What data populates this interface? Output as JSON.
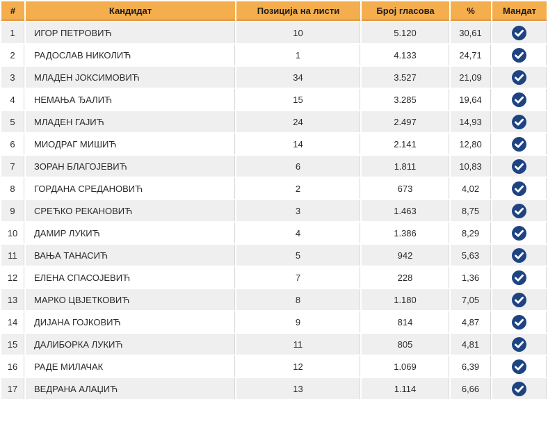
{
  "table": {
    "columns": [
      {
        "key": "index",
        "label": "#"
      },
      {
        "key": "candidate",
        "label": "Кандидат"
      },
      {
        "key": "position",
        "label": "Позиција на листи"
      },
      {
        "key": "votes",
        "label": "Број гласова"
      },
      {
        "key": "percent",
        "label": "%"
      },
      {
        "key": "mandate",
        "label": "Мандат"
      }
    ],
    "mandate_icon": "check-circle-icon",
    "rows": [
      {
        "index": "1",
        "candidate": "ИГОР ПЕТРОВИЋ",
        "position": "10",
        "votes": "5.120",
        "percent": "30,61",
        "mandate": true
      },
      {
        "index": "2",
        "candidate": "РАДОСЛАВ НИКОЛИЋ",
        "position": "1",
        "votes": "4.133",
        "percent": "24,71",
        "mandate": true
      },
      {
        "index": "3",
        "candidate": "МЛАДЕН ЈОКСИМОВИЋ",
        "position": "34",
        "votes": "3.527",
        "percent": "21,09",
        "mandate": true
      },
      {
        "index": "4",
        "candidate": "НЕМАЊА ЂАЛИЋ",
        "position": "15",
        "votes": "3.285",
        "percent": "19,64",
        "mandate": true
      },
      {
        "index": "5",
        "candidate": "МЛАДЕН ГАЈИЋ",
        "position": "24",
        "votes": "2.497",
        "percent": "14,93",
        "mandate": true
      },
      {
        "index": "6",
        "candidate": "МИОДРАГ МИШИЋ",
        "position": "14",
        "votes": "2.141",
        "percent": "12,80",
        "mandate": true
      },
      {
        "index": "7",
        "candidate": "ЗОРАН БЛАГОЈЕВИЋ",
        "position": "6",
        "votes": "1.811",
        "percent": "10,83",
        "mandate": true
      },
      {
        "index": "8",
        "candidate": "ГОРДАНА СРЕДАНОВИЋ",
        "position": "2",
        "votes": "673",
        "percent": "4,02",
        "mandate": true
      },
      {
        "index": "9",
        "candidate": "СРЕЋКО РЕКАНОВИЋ",
        "position": "3",
        "votes": "1.463",
        "percent": "8,75",
        "mandate": true
      },
      {
        "index": "10",
        "candidate": "ДАМИР ЛУКИЋ",
        "position": "4",
        "votes": "1.386",
        "percent": "8,29",
        "mandate": true
      },
      {
        "index": "11",
        "candidate": "ВАЊА ТАНАСИЋ",
        "position": "5",
        "votes": "942",
        "percent": "5,63",
        "mandate": true
      },
      {
        "index": "12",
        "candidate": "ЕЛЕНА СПАСОЈЕВИЋ",
        "position": "7",
        "votes": "228",
        "percent": "1,36",
        "mandate": true
      },
      {
        "index": "13",
        "candidate": "МАРКО ЦВЈЕТКОВИЋ",
        "position": "8",
        "votes": "1.180",
        "percent": "7,05",
        "mandate": true
      },
      {
        "index": "14",
        "candidate": "ДИЈАНА ГОЈКОВИЋ",
        "position": "9",
        "votes": "814",
        "percent": "4,87",
        "mandate": true
      },
      {
        "index": "15",
        "candidate": "ДАЛИБОРКА ЛУКИЋ",
        "position": "11",
        "votes": "805",
        "percent": "4,81",
        "mandate": true
      },
      {
        "index": "16",
        "candidate": "РАДЕ МИЛАЧАК",
        "position": "12",
        "votes": "1.069",
        "percent": "6,39",
        "mandate": true
      },
      {
        "index": "17",
        "candidate": "ВЕДРАНА АЛАЏИЋ",
        "position": "13",
        "votes": "1.114",
        "percent": "6,66",
        "mandate": true
      }
    ]
  },
  "colors": {
    "header_bg": "#F5AE4D",
    "header_border_bottom": "#E2953B",
    "row_alt_bg": "#EFEFEF",
    "row_bg": "#FFFFFF",
    "cell_border": "#D6D6D6",
    "mandate_icon": "#1E4383",
    "mandate_check": "#FFFFFF",
    "text": "#2B2B2B"
  }
}
